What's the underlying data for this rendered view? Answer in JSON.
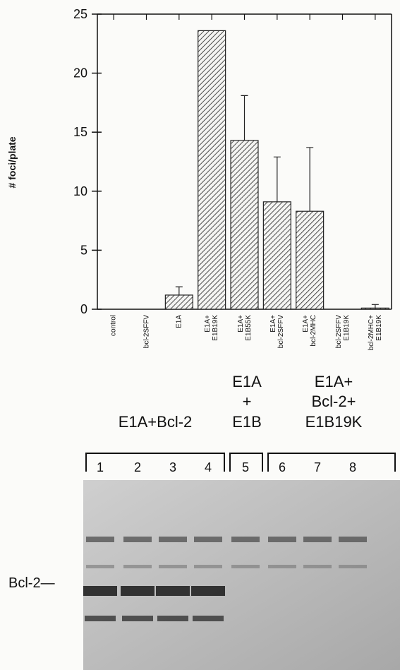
{
  "chart_data": {
    "type": "bar",
    "y_label": "# foci/plate",
    "categories": [
      "control",
      "bcl-2SFFV",
      "E1A",
      "E1A+\nE1B19K",
      "E1A+\nE1B55K",
      "E1A+\nbcl-2SFFV",
      "E1A+\nbcl-2MHC",
      "bcl-2SFFV\nE1B19K",
      "bcl-2MHC+\nE1B19K"
    ],
    "values": [
      0,
      0,
      1.2,
      23.6,
      14.3,
      9.1,
      8.3,
      0,
      0.1
    ],
    "errors": [
      null,
      null,
      0.7,
      null,
      3.8,
      3.8,
      5.4,
      null,
      0.3
    ],
    "color": "#222",
    "ylim": [
      0,
      25
    ],
    "yticks": [
      0,
      5,
      10,
      15,
      20,
      25
    ]
  },
  "gel": {
    "groups": [
      [
        "E1A+Bcl-2"
      ],
      [
        "E1A",
        "+",
        "E1B"
      ],
      [
        "E1A+",
        "Bcl-2+",
        "E1B19K"
      ]
    ],
    "lanes": [
      "1",
      "2",
      "3",
      "4",
      "5",
      "6",
      "7",
      "8"
    ],
    "band_label": "Bcl-2—"
  }
}
